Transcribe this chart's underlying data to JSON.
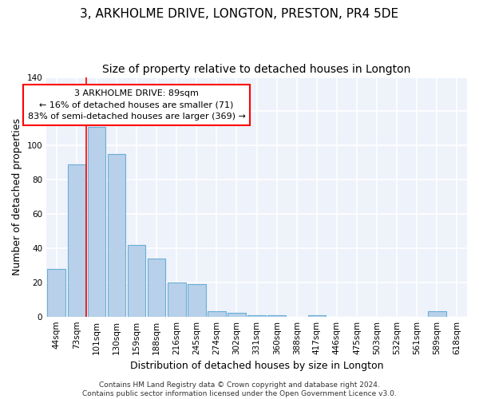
{
  "title_line1": "3, ARKHOLME DRIVE, LONGTON, PRESTON, PR4 5DE",
  "title_line2": "Size of property relative to detached houses in Longton",
  "xlabel": "Distribution of detached houses by size in Longton",
  "ylabel": "Number of detached properties",
  "bar_labels": [
    "44sqm",
    "73sqm",
    "101sqm",
    "130sqm",
    "159sqm",
    "188sqm",
    "216sqm",
    "245sqm",
    "274sqm",
    "302sqm",
    "331sqm",
    "360sqm",
    "388sqm",
    "417sqm",
    "446sqm",
    "475sqm",
    "503sqm",
    "532sqm",
    "561sqm",
    "589sqm",
    "618sqm"
  ],
  "bar_values": [
    28,
    89,
    111,
    95,
    42,
    34,
    20,
    19,
    3,
    2,
    1,
    1,
    0,
    1,
    0,
    0,
    0,
    0,
    0,
    3,
    0
  ],
  "bar_color": "#b8d0ea",
  "bar_edge_color": "#6aaed6",
  "background_color": "#eef2fb",
  "grid_color": "#ffffff",
  "ylim": [
    0,
    140
  ],
  "yticks": [
    0,
    20,
    40,
    60,
    80,
    100,
    120,
    140
  ],
  "annotation_text": "3 ARKHOLME DRIVE: 89sqm\n← 16% of detached houses are smaller (71)\n83% of semi-detached houses are larger (369) →",
  "red_line_x": 1.5,
  "footer_text": "Contains HM Land Registry data © Crown copyright and database right 2024.\nContains public sector information licensed under the Open Government Licence v3.0.",
  "title_fontsize": 11,
  "subtitle_fontsize": 10,
  "axis_label_fontsize": 9,
  "tick_fontsize": 7.5,
  "annotation_fontsize": 8,
  "footer_fontsize": 6.5
}
